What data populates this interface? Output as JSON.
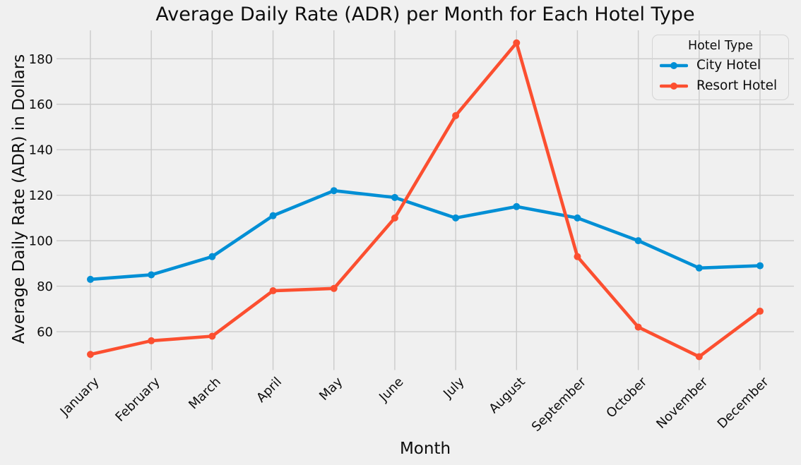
{
  "figure": {
    "background": "#f0f0f0",
    "grid_color": "#cbcbcb",
    "text_color": "#0d0d0d"
  },
  "chart_data": {
    "type": "line",
    "title": "Average Daily Rate (ADR) per Month for Each Hotel Type",
    "xlabel": "Month",
    "ylabel": "Average Daily Rate (ADR) in Dollars",
    "categories": [
      "January",
      "February",
      "March",
      "April",
      "May",
      "June",
      "July",
      "August",
      "September",
      "October",
      "November",
      "December"
    ],
    "series": [
      {
        "name": "City Hotel",
        "color": "#008fd5",
        "values": [
          83,
          85,
          93,
          111,
          122,
          119,
          110,
          115,
          110,
          100,
          88,
          89
        ]
      },
      {
        "name": "Resort Hotel",
        "color": "#fc4f30",
        "values": [
          50,
          56,
          58,
          78,
          79,
          110,
          155,
          187,
          93,
          62,
          49,
          69
        ]
      }
    ],
    "yticks": [
      60,
      80,
      100,
      120,
      140,
      160,
      180
    ],
    "ylim": [
      44.5,
      192.5
    ],
    "grid": true,
    "marker": "o",
    "xtick_rotation": 45,
    "legend": {
      "title": "Hotel Type",
      "position": "upper right"
    }
  }
}
